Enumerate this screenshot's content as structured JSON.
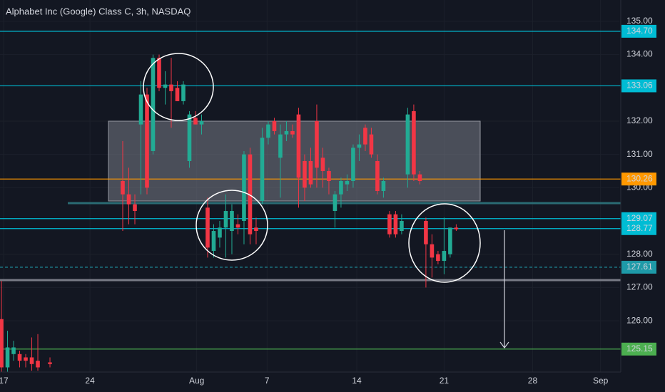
{
  "chart_data": {
    "type": "candlestick",
    "title": "Alphabet Inc (Google) Class C, 3h, NASDAQ",
    "up_color": "#22ab94",
    "down_color": "#f23645",
    "open": [
      126.05,
      124.6,
      125.0,
      125.0,
      124.9,
      124.9,
      124.8,
      null,
      124.75,
      null,
      null,
      null,
      null,
      null,
      null,
      null,
      null,
      null,
      null,
      null,
      130.2,
      129.8,
      129.5,
      131.9,
      132.8,
      131.1,
      133.9,
      133.0,
      133.1,
      133.0,
      132.6,
      130.8,
      132.1,
      131.9,
      129.4,
      128.1,
      128.5,
      128.8,
      128.7,
      128.9,
      129.0,
      131.0,
      128.8,
      129.6,
      131.5,
      132.0,
      130.9,
      131.6,
      131.7,
      132.2,
      130.8,
      130.8,
      132.0,
      130.9,
      130.5,
      129.3,
      129.8,
      130.1,
      130.2,
      131.2,
      131.8,
      131.6,
      130.8,
      129.9,
      129.2,
      129.2,
      128.7,
      130.4,
      132.3,
      130.4,
      129.0,
      128.3,
      128.0,
      127.8,
      128.0,
      128.8
    ],
    "high": [
      127.2,
      125.7,
      125.4,
      125.1,
      125.0,
      125.5,
      125.6,
      null,
      124.9,
      null,
      null,
      null,
      null,
      null,
      null,
      null,
      null,
      null,
      null,
      null,
      131.4,
      130.6,
      129.8,
      133.2,
      133.0,
      134.0,
      134.0,
      133.5,
      133.9,
      133.2,
      133.2,
      132.3,
      132.3,
      132.2,
      129.7,
      128.9,
      129.0,
      129.8,
      129.5,
      129.2,
      131.1,
      131.2,
      129.1,
      131.8,
      132.0,
      132.1,
      131.9,
      132.0,
      131.9,
      132.4,
      131.0,
      131.2,
      132.5,
      131.2,
      130.6,
      129.9,
      130.3,
      130.4,
      131.3,
      131.6,
      131.9,
      131.8,
      131.0,
      130.3,
      129.3,
      129.3,
      129.2,
      132.4,
      132.5,
      130.5,
      129.1,
      128.6,
      128.1,
      129.1,
      128.8,
      128.9
    ],
    "low": [
      124.4,
      124.4,
      124.8,
      124.6,
      124.6,
      124.5,
      124.5,
      null,
      124.6,
      null,
      null,
      null,
      null,
      null,
      null,
      null,
      null,
      null,
      null,
      null,
      128.7,
      128.9,
      128.9,
      129.8,
      129.8,
      131.0,
      132.9,
      132.5,
      131.8,
      132.6,
      132.5,
      130.6,
      131.9,
      131.6,
      127.9,
      127.9,
      128.2,
      127.9,
      128.0,
      128.6,
      128.3,
      128.3,
      128.3,
      129.5,
      131.3,
      131.6,
      129.7,
      131.4,
      131.5,
      129.4,
      129.6,
      130.0,
      130.0,
      130.0,
      129.8,
      128.8,
      129.4,
      129.9,
      130.0,
      130.8,
      131.1,
      130.9,
      129.8,
      129.7,
      128.5,
      128.5,
      128.6,
      130.0,
      130.2,
      130.1,
      127.0,
      127.3,
      127.7,
      127.4,
      127.9,
      128.7
    ],
    "close": [
      124.6,
      125.2,
      125.2,
      124.8,
      124.8,
      124.7,
      124.6,
      null,
      124.7,
      null,
      null,
      null,
      null,
      null,
      null,
      null,
      null,
      null,
      null,
      null,
      129.8,
      129.5,
      129.3,
      132.8,
      130.0,
      133.9,
      133.0,
      133.1,
      132.9,
      132.6,
      133.1,
      132.2,
      131.9,
      132.0,
      128.2,
      128.7,
      128.8,
      129.3,
      129.3,
      128.8,
      131.0,
      128.6,
      128.7,
      131.5,
      131.9,
      131.7,
      131.6,
      131.7,
      131.6,
      130.3,
      130.0,
      130.1,
      130.6,
      130.5,
      130.2,
      129.8,
      130.2,
      130.2,
      131.2,
      131.3,
      131.3,
      131.0,
      129.9,
      130.2,
      128.6,
      128.6,
      129.0,
      132.2,
      130.4,
      130.2,
      128.3,
      127.9,
      127.8,
      128.1,
      128.8,
      128.75
    ],
    "xlim": [
      -0.24,
      101.9
    ],
    "xticks": [
      {
        "value": 0.35,
        "label": "17"
      },
      {
        "value": 14.6,
        "label": "24"
      },
      {
        "value": 32.2,
        "label": "Aug"
      },
      {
        "value": 43.8,
        "label": "7"
      },
      {
        "value": 58.6,
        "label": "14"
      },
      {
        "value": 73,
        "label": "21"
      },
      {
        "value": 87.6,
        "label": "28"
      },
      {
        "value": 98.8,
        "label": "Sep"
      }
    ],
    "ylim": [
      124.46,
      135.64
    ],
    "yticks": [
      {
        "value": 126,
        "label": "126.00"
      },
      {
        "value": 127,
        "label": "127.00"
      },
      {
        "value": 128,
        "label": "128.00"
      },
      {
        "value": 130,
        "label": "130.00"
      },
      {
        "value": 131,
        "label": "131.00"
      },
      {
        "value": 132,
        "label": "132.00"
      },
      {
        "value": 134,
        "label": "134.00"
      },
      {
        "value": 135,
        "label": "135.00"
      }
    ],
    "levels": [
      {
        "value": 134.7,
        "label": "134.70",
        "color": "#00bcd4"
      },
      {
        "value": 133.06,
        "label": "133.06",
        "color": "#00bcd4"
      },
      {
        "value": 130.26,
        "label": "130.26",
        "color": "#ff9800"
      },
      {
        "value": 129.07,
        "label": "129.07",
        "color": "#00bcd4"
      },
      {
        "value": 128.77,
        "label": "128.77",
        "color": "#00bcd4"
      },
      {
        "value": 127.61,
        "label": "127.61",
        "color": "#1e9aa8",
        "dashed": true
      },
      {
        "value": 125.15,
        "label": "125.15",
        "color": "#4caf50"
      }
    ]
  }
}
